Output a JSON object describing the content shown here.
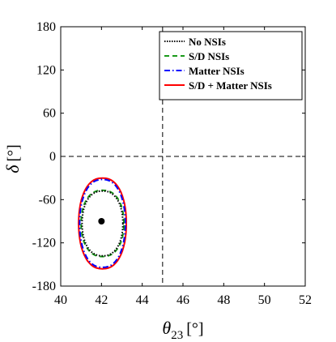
{
  "chart_data": {
    "type": "line",
    "title": "",
    "xlabel_main": "θ",
    "xlabel_sub": "23",
    "xlabel_unit": "[°]",
    "ylabel_main": "δ",
    "ylabel_unit": "[°]",
    "xlim": [
      40,
      52
    ],
    "ylim": [
      -180,
      180
    ],
    "xticks": [
      40,
      42,
      44,
      46,
      48,
      50,
      52
    ],
    "yticks": [
      -180,
      -120,
      -60,
      0,
      60,
      120,
      180
    ],
    "grid": false,
    "legend_position": "top-right",
    "reference_lines": [
      {
        "axis": "x",
        "value": 45,
        "style": "dashed"
      },
      {
        "axis": "y",
        "value": 0,
        "style": "dashed"
      }
    ],
    "best_fit_point": {
      "x": 42,
      "y": -90
    },
    "series": [
      {
        "name": "No NSIs",
        "color": "#000000",
        "style": "dotted",
        "center": [
          42.05,
          -93
        ],
        "half_width": 1.0,
        "half_height": 45
      },
      {
        "name": "S/D NSIs",
        "color": "#1a9a1a",
        "style": "dashed",
        "center": [
          42.05,
          -93
        ],
        "half_width": 1.05,
        "half_height": 46
      },
      {
        "name": "Matter NSIs",
        "color": "#0000ff",
        "style": "dashdot",
        "center": [
          42.05,
          -93
        ],
        "half_width": 1.12,
        "half_height": 61
      },
      {
        "name": "S/D + Matter NSIs",
        "color": "#ff0000",
        "style": "solid",
        "center": [
          42.05,
          -93
        ],
        "half_width": 1.17,
        "half_height": 63
      }
    ]
  }
}
